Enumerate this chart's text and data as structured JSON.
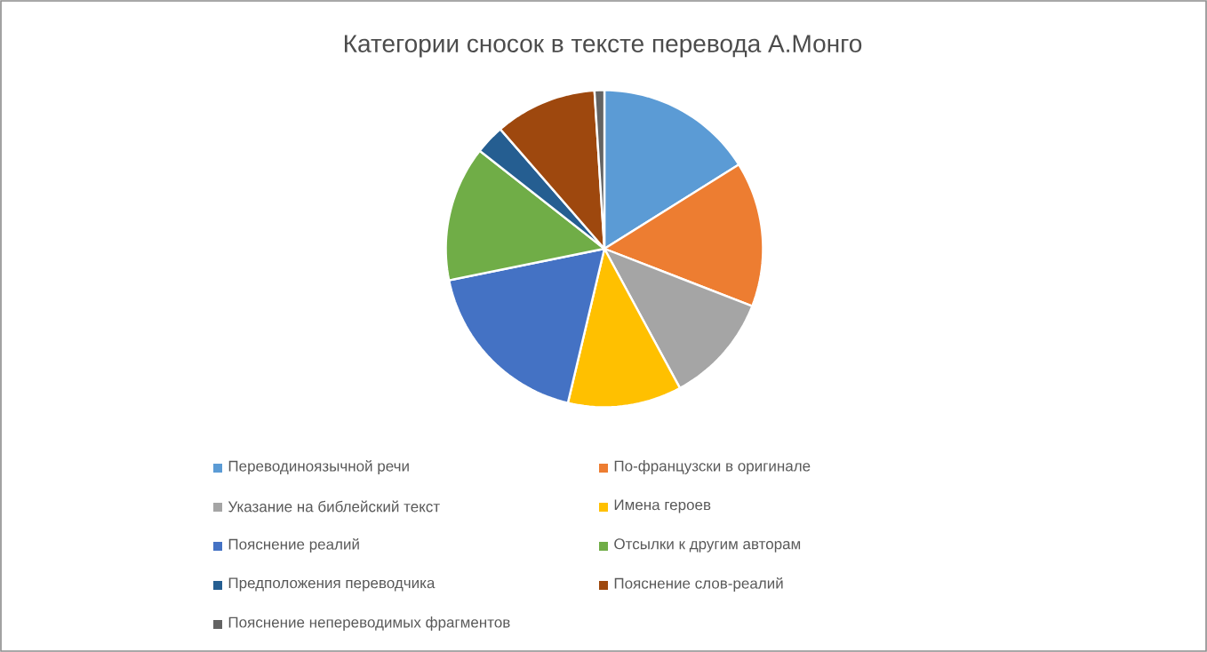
{
  "chart_data": {
    "type": "pie",
    "title": "Категории сносок в тексте перевода А.Монго",
    "categories": [
      "Переводиноязычной речи",
      "По-французски в оригинале",
      "Указание на библейский текст",
      "Имена героев",
      "Пояснение реалий",
      "Отсылки к другим авторам",
      "Предположения переводчика",
      "Пояснение слов-реалий",
      "Пояснение непереводимых фрагментов"
    ],
    "values": [
      16.1,
      14.8,
      11.2,
      11.6,
      18.1,
      13.8,
      3,
      10.4,
      1
    ],
    "colors": [
      "#5b9bd5",
      "#ed7d31",
      "#a5a5a5",
      "#ffc000",
      "#4472c4",
      "#70ad47",
      "#255e91",
      "#9e480e",
      "#636363"
    ],
    "legend": "bottom"
  }
}
